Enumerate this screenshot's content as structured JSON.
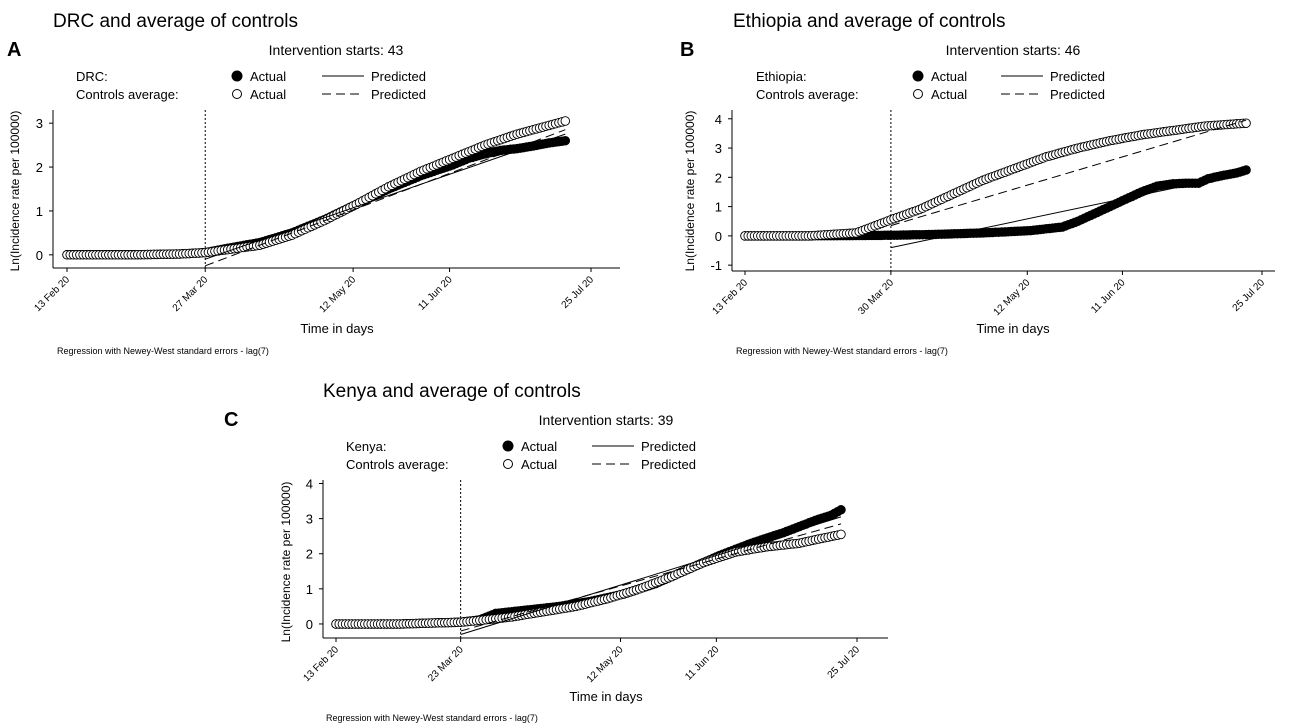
{
  "chart_data": [
    {
      "type": "line",
      "panel_letter": "A",
      "title": "DRC and average of controls",
      "subtitle": "Intervention starts: 43",
      "legend": {
        "rows": [
          {
            "label": "DRC:",
            "actual": "Actual",
            "predicted": "Predicted"
          },
          {
            "label": "Controls average:",
            "actual": "Actual",
            "predicted": "Predicted"
          }
        ]
      },
      "xlabel": "Time in days",
      "ylabel": "Ln(Incidence rate per 100000)",
      "footnote": "Regression with Newey-West standard errors - lag(7)",
      "x_ticks": [
        {
          "day": 0,
          "label": "13 Feb 20"
        },
        {
          "day": 43,
          "label": "27 Mar 20"
        },
        {
          "day": 89,
          "label": "12 May 20"
        },
        {
          "day": 119,
          "label": "11 Jun 20"
        },
        {
          "day": 163,
          "label": "25 Jul 20"
        }
      ],
      "y_ticks": [
        0,
        1,
        2,
        3
      ],
      "xlim": [
        0,
        163
      ],
      "ylim": [
        -0.3,
        3.3
      ],
      "intervention_day": 43,
      "series": [
        {
          "role": "treated-actual",
          "marker": "filled",
          "points": [
            [
              0,
              0
            ],
            [
              20,
              0
            ],
            [
              35,
              0.02
            ],
            [
              43,
              0.05
            ],
            [
              50,
              0.15
            ],
            [
              60,
              0.28
            ],
            [
              70,
              0.5
            ],
            [
              80,
              0.8
            ],
            [
              90,
              1.15
            ],
            [
              100,
              1.5
            ],
            [
              110,
              1.8
            ],
            [
              120,
              2.05
            ],
            [
              125,
              2.2
            ],
            [
              130,
              2.3
            ],
            [
              135,
              2.38
            ],
            [
              140,
              2.42
            ],
            [
              145,
              2.48
            ],
            [
              150,
              2.55
            ],
            [
              155,
              2.6
            ]
          ]
        },
        {
          "role": "control-actual",
          "marker": "hollow",
          "points": [
            [
              0,
              0
            ],
            [
              20,
              0
            ],
            [
              35,
              0.02
            ],
            [
              43,
              0.05
            ],
            [
              50,
              0.12
            ],
            [
              60,
              0.22
            ],
            [
              70,
              0.45
            ],
            [
              80,
              0.78
            ],
            [
              90,
              1.15
            ],
            [
              100,
              1.55
            ],
            [
              110,
              1.9
            ],
            [
              120,
              2.2
            ],
            [
              130,
              2.5
            ],
            [
              140,
              2.75
            ],
            [
              150,
              2.95
            ],
            [
              155,
              3.05
            ]
          ]
        },
        {
          "role": "treated-predicted",
          "line": "solid",
          "points": [
            [
              43,
              -0.1
            ],
            [
              155,
              2.75
            ]
          ]
        },
        {
          "role": "control-predicted",
          "line": "dashed",
          "points": [
            [
              43,
              -0.25
            ],
            [
              155,
              2.85
            ]
          ]
        }
      ]
    },
    {
      "type": "line",
      "panel_letter": "B",
      "title": "Ethiopia and average of controls",
      "subtitle": "Intervention starts: 46",
      "legend": {
        "rows": [
          {
            "label": "Ethiopia:",
            "actual": "Actual",
            "predicted": "Predicted"
          },
          {
            "label": "Controls average:",
            "actual": "Actual",
            "predicted": "Predicted"
          }
        ]
      },
      "xlabel": "Time in days",
      "ylabel": "Ln(Incidence rate per 100000)",
      "footnote": "Regression with Newey-West standard errors - lag(7)",
      "x_ticks": [
        {
          "day": 0,
          "label": "13 Feb 20"
        },
        {
          "day": 46,
          "label": "30 Mar 20"
        },
        {
          "day": 89,
          "label": "12 May 20"
        },
        {
          "day": 119,
          "label": "11 Jun 20"
        },
        {
          "day": 163,
          "label": "25 Jul 20"
        }
      ],
      "y_ticks": [
        -1,
        0,
        1,
        2,
        3,
        4
      ],
      "xlim": [
        0,
        163
      ],
      "ylim": [
        -1.2,
        4.3
      ],
      "intervention_day": 46,
      "series": [
        {
          "role": "treated-actual",
          "marker": "filled",
          "points": [
            [
              0,
              0
            ],
            [
              20,
              0
            ],
            [
              46,
              0.02
            ],
            [
              60,
              0.05
            ],
            [
              75,
              0.1
            ],
            [
              90,
              0.18
            ],
            [
              100,
              0.3
            ],
            [
              105,
              0.5
            ],
            [
              110,
              0.75
            ],
            [
              115,
              1.0
            ],
            [
              120,
              1.25
            ],
            [
              125,
              1.5
            ],
            [
              130,
              1.7
            ],
            [
              135,
              1.78
            ],
            [
              140,
              1.8
            ],
            [
              143,
              1.8
            ],
            [
              146,
              1.95
            ],
            [
              150,
              2.05
            ],
            [
              155,
              2.15
            ],
            [
              158,
              2.25
            ]
          ]
        },
        {
          "role": "control-actual",
          "marker": "hollow",
          "points": [
            [
              0,
              0
            ],
            [
              20,
              0
            ],
            [
              35,
              0.1
            ],
            [
              46,
              0.55
            ],
            [
              55,
              0.9
            ],
            [
              65,
              1.4
            ],
            [
              75,
              1.9
            ],
            [
              85,
              2.3
            ],
            [
              95,
              2.7
            ],
            [
              105,
              3.0
            ],
            [
              115,
              3.25
            ],
            [
              125,
              3.45
            ],
            [
              135,
              3.6
            ],
            [
              145,
              3.75
            ],
            [
              158,
              3.85
            ]
          ]
        },
        {
          "role": "treated-predicted",
          "line": "solid",
          "points": [
            [
              46,
              -0.4
            ],
            [
              158,
              2.15
            ]
          ]
        },
        {
          "role": "control-predicted",
          "line": "dashed",
          "points": [
            [
              46,
              0.35
            ],
            [
              158,
              3.95
            ]
          ]
        }
      ]
    },
    {
      "type": "line",
      "panel_letter": "C",
      "title": "Kenya and average of controls",
      "subtitle": "Intervention starts: 39",
      "legend": {
        "rows": [
          {
            "label": "Kenya:",
            "actual": "Actual",
            "predicted": "Predicted"
          },
          {
            "label": "Controls average:",
            "actual": "Actual",
            "predicted": "Predicted"
          }
        ]
      },
      "xlabel": "Time in days",
      "ylabel": "Ln(Incidence rate per 100000)",
      "footnote": "Regression with Newey-West standard errors - lag(7)",
      "x_ticks": [
        {
          "day": 0,
          "label": "13 Feb 20"
        },
        {
          "day": 39,
          "label": "23 Mar 20"
        },
        {
          "day": 89,
          "label": "12 May 20"
        },
        {
          "day": 119,
          "label": "11 Jun 20"
        },
        {
          "day": 163,
          "label": "25 Jul 20"
        }
      ],
      "y_ticks": [
        0,
        1,
        2,
        3,
        4
      ],
      "xlim": [
        0,
        163
      ],
      "ylim": [
        -0.4,
        4.1
      ],
      "intervention_day": 39,
      "series": [
        {
          "role": "treated-actual",
          "marker": "filled",
          "points": [
            [
              0,
              0
            ],
            [
              20,
              0
            ],
            [
              39,
              0.05
            ],
            [
              45,
              0.12
            ],
            [
              50,
              0.3
            ],
            [
              60,
              0.4
            ],
            [
              70,
              0.5
            ],
            [
              80,
              0.65
            ],
            [
              90,
              0.85
            ],
            [
              100,
              1.15
            ],
            [
              110,
              1.55
            ],
            [
              120,
              1.95
            ],
            [
              130,
              2.3
            ],
            [
              140,
              2.6
            ],
            [
              150,
              2.95
            ],
            [
              155,
              3.1
            ],
            [
              158,
              3.25
            ]
          ]
        },
        {
          "role": "control-actual",
          "marker": "hollow",
          "points": [
            [
              0,
              0
            ],
            [
              20,
              0
            ],
            [
              39,
              0.05
            ],
            [
              45,
              0.1
            ],
            [
              55,
              0.2
            ],
            [
              65,
              0.35
            ],
            [
              75,
              0.5
            ],
            [
              85,
              0.72
            ],
            [
              95,
              1.0
            ],
            [
              105,
              1.35
            ],
            [
              115,
              1.75
            ],
            [
              125,
              2.05
            ],
            [
              135,
              2.2
            ],
            [
              145,
              2.3
            ],
            [
              150,
              2.4
            ],
            [
              158,
              2.55
            ]
          ]
        },
        {
          "role": "treated-predicted",
          "line": "solid",
          "points": [
            [
              39,
              -0.3
            ],
            [
              158,
              3.05
            ]
          ]
        },
        {
          "role": "control-predicted",
          "line": "dashed",
          "points": [
            [
              39,
              -0.2
            ],
            [
              158,
              2.85
            ]
          ]
        }
      ]
    }
  ]
}
